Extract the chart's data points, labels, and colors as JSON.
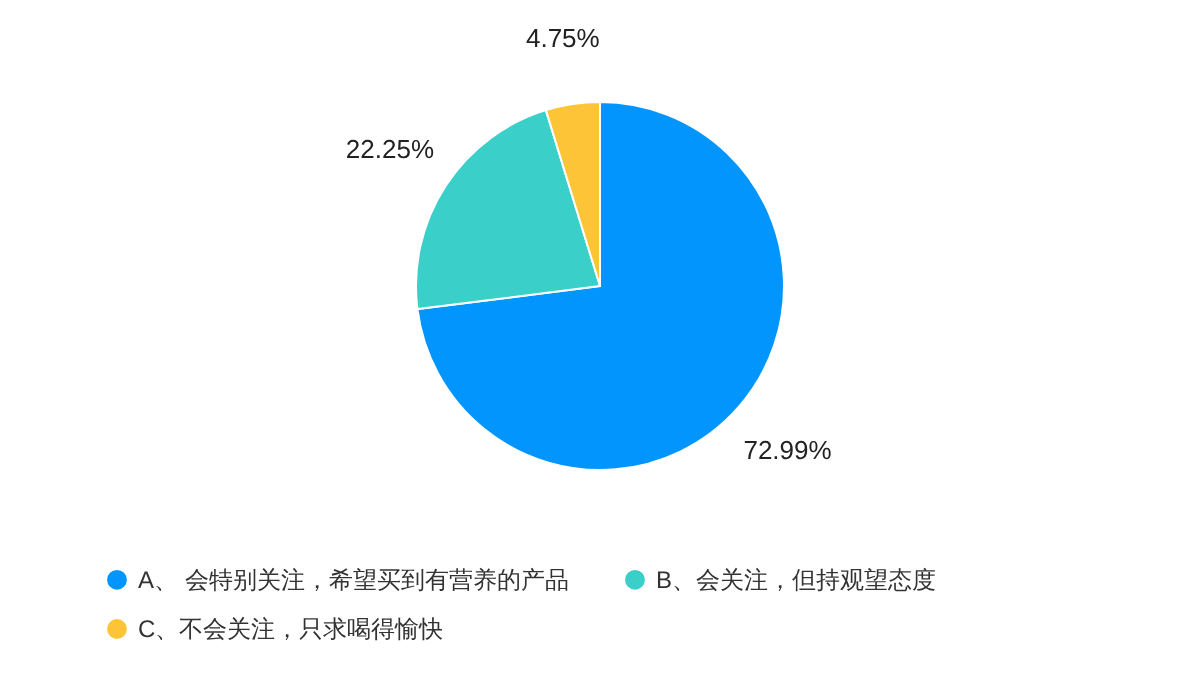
{
  "chart_data": {
    "type": "pie",
    "categories": [
      "A、  会特别关注，希望买到有营养的产品",
      "B、会关注，但持观望态度",
      "C、不会关注，只求喝得愉快"
    ],
    "values": [
      72.99,
      22.25,
      4.75
    ],
    "colors": [
      "#0395fe",
      "#3acfc9",
      "#fdc437"
    ],
    "value_labels": [
      "72.99%",
      "22.25%",
      "4.75%"
    ],
    "legend": "bottom left"
  }
}
